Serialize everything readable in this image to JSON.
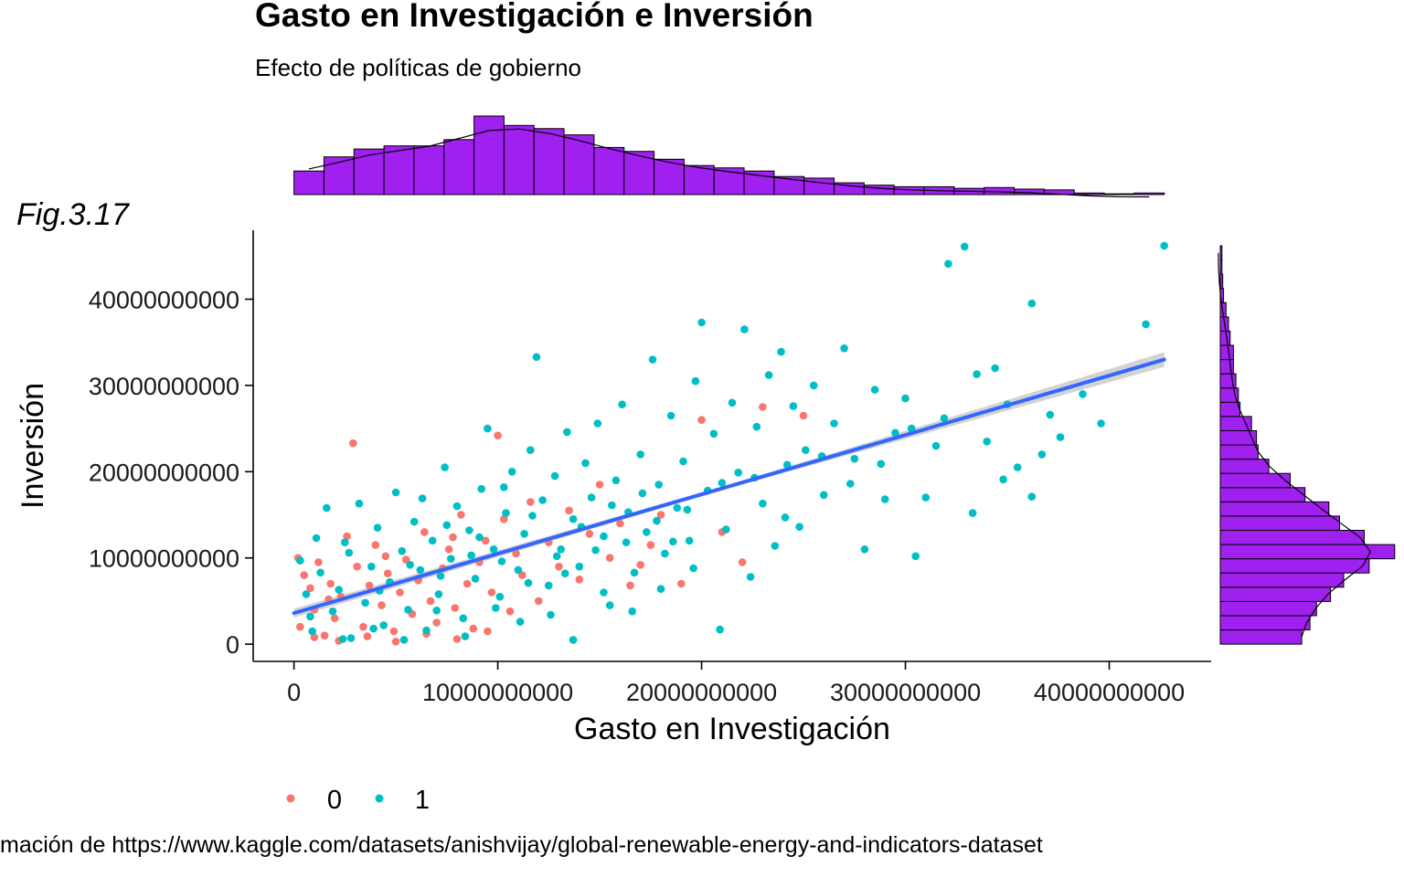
{
  "figure": {
    "tag": "Fig.3.17",
    "caption": "mación de https://www.kaggle.com/datasets/anishvijay/global-renewable-energy-and-indicators-dataset"
  },
  "colors": {
    "group_0": "#F8766D",
    "group_1": "#00BFC4",
    "trend": "#3366FF",
    "band": "#C8C8C8",
    "histogram_fill": "#A020F0"
  },
  "chart_data": {
    "type": "scatter",
    "title": "Gasto en Investigación e Inversión",
    "subtitle": "Efecto de políticas de gobierno",
    "xlabel": "Gasto en Investigación",
    "ylabel": "Inversión",
    "xlim": [
      -2000000000,
      45000000000
    ],
    "ylim": [
      -2000000000,
      48000000000
    ],
    "x_ticks": [
      0,
      10000000000,
      20000000000,
      30000000000,
      40000000000
    ],
    "x_tick_labels": [
      "0",
      "10000000000",
      "20000000000",
      "30000000000",
      "40000000000"
    ],
    "y_ticks": [
      0,
      10000000000,
      20000000000,
      30000000000,
      40000000000
    ],
    "y_tick_labels": [
      "0",
      "10000000000",
      "20000000000",
      "30000000000",
      "40000000000"
    ],
    "grid": false,
    "legend": {
      "position": "bottom",
      "entries": [
        "0",
        "1"
      ]
    },
    "trend_line": {
      "x": [
        0,
        42700000000
      ],
      "y": [
        3600000000,
        33000000000
      ]
    },
    "series": [
      {
        "name": "0",
        "points": [
          [
            200000000,
            10000000000
          ],
          [
            300000000,
            2000000000
          ],
          [
            500000000,
            8000000000
          ],
          [
            800000000,
            6500000000
          ],
          [
            1000000000,
            4000000000
          ],
          [
            1200000000,
            9500000000
          ],
          [
            1500000000,
            1000000000
          ],
          [
            1800000000,
            7000000000
          ],
          [
            2000000000,
            3000000000
          ],
          [
            2300000000,
            5500000000
          ],
          [
            2600000000,
            12500000000
          ],
          [
            2900000000,
            23300000000
          ],
          [
            3100000000,
            9000000000
          ],
          [
            3400000000,
            2000000000
          ],
          [
            3700000000,
            6800000000
          ],
          [
            4000000000,
            11500000000
          ],
          [
            4300000000,
            4500000000
          ],
          [
            4600000000,
            8200000000
          ],
          [
            4900000000,
            1500000000
          ],
          [
            5200000000,
            6000000000
          ],
          [
            5500000000,
            9800000000
          ],
          [
            5800000000,
            3500000000
          ],
          [
            6100000000,
            7400000000
          ],
          [
            6400000000,
            13000000000
          ],
          [
            6700000000,
            5000000000
          ],
          [
            7000000000,
            2500000000
          ],
          [
            7300000000,
            8800000000
          ],
          [
            7600000000,
            11000000000
          ],
          [
            7900000000,
            4200000000
          ],
          [
            8200000000,
            15000000000
          ],
          [
            8500000000,
            7000000000
          ],
          [
            8800000000,
            1800000000
          ],
          [
            9100000000,
            9500000000
          ],
          [
            9400000000,
            12000000000
          ],
          [
            9700000000,
            6000000000
          ],
          [
            10000000000,
            24200000000
          ],
          [
            10300000000,
            14500000000
          ],
          [
            10600000000,
            3800000000
          ],
          [
            10900000000,
            10500000000
          ],
          [
            11200000000,
            8000000000
          ],
          [
            11600000000,
            16500000000
          ],
          [
            12000000000,
            5000000000
          ],
          [
            12500000000,
            11800000000
          ],
          [
            13000000000,
            9000000000
          ],
          [
            13500000000,
            15500000000
          ],
          [
            14000000000,
            7500000000
          ],
          [
            14500000000,
            12800000000
          ],
          [
            15000000000,
            18500000000
          ],
          [
            15500000000,
            10000000000
          ],
          [
            16000000000,
            14000000000
          ],
          [
            16500000000,
            6800000000
          ],
          [
            17000000000,
            9200000000
          ],
          [
            17500000000,
            11500000000
          ],
          [
            18000000000,
            15000000000
          ],
          [
            19000000000,
            7000000000
          ],
          [
            20000000000,
            26000000000
          ],
          [
            21000000000,
            13000000000
          ],
          [
            22000000000,
            9500000000
          ],
          [
            23000000000,
            27500000000
          ],
          [
            25000000000,
            26500000000
          ],
          [
            1000000000,
            800000000
          ],
          [
            2200000000,
            400000000
          ],
          [
            3600000000,
            900000000
          ],
          [
            5000000000,
            300000000
          ],
          [
            6500000000,
            1200000000
          ],
          [
            8000000000,
            600000000
          ],
          [
            9500000000,
            1500000000
          ],
          [
            1700000000,
            5200000000
          ],
          [
            4500000000,
            10200000000
          ],
          [
            7800000000,
            12400000000
          ]
        ]
      },
      {
        "name": "1",
        "points": [
          [
            300000000,
            9700000000
          ],
          [
            600000000,
            5800000000
          ],
          [
            900000000,
            1500000000
          ],
          [
            1300000000,
            8300000000
          ],
          [
            1600000000,
            15800000000
          ],
          [
            1900000000,
            3800000000
          ],
          [
            2200000000,
            6300000000
          ],
          [
            2500000000,
            11800000000
          ],
          [
            2800000000,
            700000000
          ],
          [
            3200000000,
            16300000000
          ],
          [
            3500000000,
            4800000000
          ],
          [
            3800000000,
            9000000000
          ],
          [
            4100000000,
            13500000000
          ],
          [
            4400000000,
            2200000000
          ],
          [
            4700000000,
            7200000000
          ],
          [
            5000000000,
            17600000000
          ],
          [
            5300000000,
            10800000000
          ],
          [
            5600000000,
            4000000000
          ],
          [
            5900000000,
            14200000000
          ],
          [
            6200000000,
            8600000000
          ],
          [
            6500000000,
            1600000000
          ],
          [
            6800000000,
            12000000000
          ],
          [
            7100000000,
            5800000000
          ],
          [
            7400000000,
            20500000000
          ],
          [
            7700000000,
            9900000000
          ],
          [
            8000000000,
            16000000000
          ],
          [
            8300000000,
            3000000000
          ],
          [
            8600000000,
            13200000000
          ],
          [
            8900000000,
            7600000000
          ],
          [
            9200000000,
            18000000000
          ],
          [
            9500000000,
            25000000000
          ],
          [
            9800000000,
            11000000000
          ],
          [
            10100000000,
            5500000000
          ],
          [
            10400000000,
            15200000000
          ],
          [
            10700000000,
            20000000000
          ],
          [
            11000000000,
            8600000000
          ],
          [
            11300000000,
            12800000000
          ],
          [
            11600000000,
            22500000000
          ],
          [
            11900000000,
            33300000000
          ],
          [
            12200000000,
            16700000000
          ],
          [
            12500000000,
            6800000000
          ],
          [
            12800000000,
            19500000000
          ],
          [
            13100000000,
            11000000000
          ],
          [
            13400000000,
            24600000000
          ],
          [
            13700000000,
            14500000000
          ],
          [
            14000000000,
            9000000000
          ],
          [
            14300000000,
            21000000000
          ],
          [
            14600000000,
            17000000000
          ],
          [
            14900000000,
            25600000000
          ],
          [
            15200000000,
            12500000000
          ],
          [
            15500000000,
            4500000000
          ],
          [
            15800000000,
            19000000000
          ],
          [
            16100000000,
            27800000000
          ],
          [
            16400000000,
            15300000000
          ],
          [
            16700000000,
            8300000000
          ],
          [
            17000000000,
            22000000000
          ],
          [
            17300000000,
            13000000000
          ],
          [
            17600000000,
            33000000000
          ],
          [
            17900000000,
            18500000000
          ],
          [
            18200000000,
            10500000000
          ],
          [
            18500000000,
            26500000000
          ],
          [
            18800000000,
            15800000000
          ],
          [
            19100000000,
            21200000000
          ],
          [
            19400000000,
            12000000000
          ],
          [
            19700000000,
            30500000000
          ],
          [
            20000000000,
            37300000000
          ],
          [
            20300000000,
            17800000000
          ],
          [
            20600000000,
            24400000000
          ],
          [
            20900000000,
            1700000000
          ],
          [
            21200000000,
            13300000000
          ],
          [
            21500000000,
            28000000000
          ],
          [
            21800000000,
            19900000000
          ],
          [
            22100000000,
            36500000000
          ],
          [
            22400000000,
            7800000000
          ],
          [
            22700000000,
            25200000000
          ],
          [
            23000000000,
            16300000000
          ],
          [
            23300000000,
            31200000000
          ],
          [
            23600000000,
            11400000000
          ],
          [
            23900000000,
            33900000000
          ],
          [
            24200000000,
            20800000000
          ],
          [
            24500000000,
            27600000000
          ],
          [
            24800000000,
            13600000000
          ],
          [
            25100000000,
            22500000000
          ],
          [
            25500000000,
            30000000000
          ],
          [
            26000000000,
            17300000000
          ],
          [
            26500000000,
            25600000000
          ],
          [
            27000000000,
            34300000000
          ],
          [
            27500000000,
            21500000000
          ],
          [
            28000000000,
            11000000000
          ],
          [
            28500000000,
            29500000000
          ],
          [
            29000000000,
            16800000000
          ],
          [
            29500000000,
            24500000000
          ],
          [
            30000000000,
            28500000000
          ],
          [
            30500000000,
            10200000000
          ],
          [
            31000000000,
            17000000000
          ],
          [
            31500000000,
            23000000000
          ],
          [
            32100000000,
            44100000000
          ],
          [
            32900000000,
            46100000000
          ],
          [
            33500000000,
            31300000000
          ],
          [
            34000000000,
            23500000000
          ],
          [
            34400000000,
            32000000000
          ],
          [
            35000000000,
            27800000000
          ],
          [
            35500000000,
            20500000000
          ],
          [
            36200000000,
            39500000000
          ],
          [
            36200000000,
            17100000000
          ],
          [
            36700000000,
            22000000000
          ],
          [
            37100000000,
            26600000000
          ],
          [
            37600000000,
            24000000000
          ],
          [
            38700000000,
            29000000000
          ],
          [
            39600000000,
            25600000000
          ],
          [
            41800000000,
            37100000000
          ],
          [
            42700000000,
            46200000000
          ],
          [
            800000000,
            3200000000
          ],
          [
            2400000000,
            600000000
          ],
          [
            3900000000,
            1800000000
          ],
          [
            5400000000,
            500000000
          ],
          [
            7000000000,
            3900000000
          ],
          [
            8400000000,
            900000000
          ],
          [
            9900000000,
            4200000000
          ],
          [
            11100000000,
            2600000000
          ],
          [
            12600000000,
            3400000000
          ],
          [
            13700000000,
            500000000
          ],
          [
            15200000000,
            6000000000
          ],
          [
            16600000000,
            3800000000
          ],
          [
            18000000000,
            6400000000
          ],
          [
            19600000000,
            8800000000
          ],
          [
            6300000000,
            16900000000
          ],
          [
            7500000000,
            13800000000
          ],
          [
            9100000000,
            12400000000
          ],
          [
            10300000000,
            18200000000
          ],
          [
            11700000000,
            14900000000
          ],
          [
            12900000000,
            10200000000
          ],
          [
            14100000000,
            13600000000
          ],
          [
            15600000000,
            16100000000
          ],
          [
            17100000000,
            17500000000
          ],
          [
            18600000000,
            11900000000
          ],
          [
            1100000000,
            12300000000
          ],
          [
            2700000000,
            10600000000
          ],
          [
            4200000000,
            6200000000
          ],
          [
            5700000000,
            9200000000
          ],
          [
            7200000000,
            7900000000
          ],
          [
            8700000000,
            10300000000
          ],
          [
            10200000000,
            9600000000
          ],
          [
            11500000000,
            7100000000
          ],
          [
            13300000000,
            8200000000
          ],
          [
            14800000000,
            10900000000
          ],
          [
            16300000000,
            11800000000
          ],
          [
            17800000000,
            14300000000
          ],
          [
            19300000000,
            15600000000
          ],
          [
            21000000000,
            18700000000
          ],
          [
            22600000000,
            19300000000
          ],
          [
            24100000000,
            14700000000
          ],
          [
            25900000000,
            21800000000
          ],
          [
            27300000000,
            18600000000
          ],
          [
            28800000000,
            20900000000
          ],
          [
            30300000000,
            25000000000
          ],
          [
            31900000000,
            26200000000
          ],
          [
            33300000000,
            15200000000
          ],
          [
            34800000000,
            19100000000
          ]
        ]
      }
    ],
    "x_marginal": {
      "bins": 29,
      "counts": [
        3.0,
        4.8,
        5.8,
        6.2,
        6.2,
        7.0,
        10.0,
        8.8,
        8.4,
        7.6,
        6.0,
        5.5,
        4.5,
        3.7,
        3.4,
        3.0,
        2.3,
        2.1,
        1.5,
        1.2,
        1.0,
        1.0,
        0.8,
        0.9,
        0.7,
        0.6,
        0.2,
        0.1,
        0.2
      ]
    },
    "y_marginal": {
      "bins": 28,
      "counts": [
        9.9,
        10.9,
        11.7,
        13.4,
        15.0,
        18.1,
        21.2,
        17.5,
        14.5,
        13.2,
        10.3,
        8.5,
        5.9,
        4.6,
        4.4,
        3.8,
        2.4,
        2.2,
        1.9,
        1.6,
        1.6,
        1.2,
        1.0,
        0.7,
        0.4,
        0.3,
        0.2,
        0.2
      ]
    }
  }
}
